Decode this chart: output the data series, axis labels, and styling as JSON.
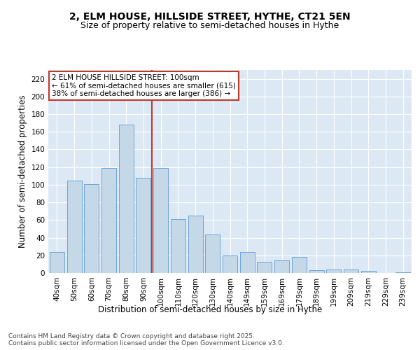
{
  "title_line1": "2, ELM HOUSE, HILLSIDE STREET, HYTHE, CT21 5EN",
  "title_line2": "Size of property relative to semi-detached houses in Hythe",
  "xlabel": "Distribution of semi-detached houses by size in Hythe",
  "ylabel": "Number of semi-detached properties",
  "categories": [
    "40sqm",
    "50sqm",
    "60sqm",
    "70sqm",
    "80sqm",
    "90sqm",
    "100sqm",
    "110sqm",
    "120sqm",
    "130sqm",
    "140sqm",
    "149sqm",
    "159sqm",
    "169sqm",
    "179sqm",
    "189sqm",
    "199sqm",
    "209sqm",
    "219sqm",
    "229sqm",
    "239sqm"
  ],
  "values": [
    24,
    105,
    101,
    119,
    168,
    108,
    119,
    61,
    65,
    44,
    20,
    24,
    13,
    14,
    18,
    3,
    4,
    4,
    2,
    0,
    1
  ],
  "bar_color": "#c5d8e8",
  "bar_edge_color": "#5b9bd5",
  "highlight_index": 6,
  "highlight_line_color": "#c0392b",
  "annotation_text": "2 ELM HOUSE HILLSIDE STREET: 100sqm\n← 61% of semi-detached houses are smaller (615)\n38% of semi-detached houses are larger (386) →",
  "annotation_box_color": "#ffffff",
  "annotation_box_edge_color": "#c0392b",
  "ylim": [
    0,
    230
  ],
  "yticks": [
    0,
    20,
    40,
    60,
    80,
    100,
    120,
    140,
    160,
    180,
    200,
    220
  ],
  "background_color": "#dce9f5",
  "footer_text": "Contains HM Land Registry data © Crown copyright and database right 2025.\nContains public sector information licensed under the Open Government Licence v3.0.",
  "title_fontsize": 10,
  "subtitle_fontsize": 9,
  "axis_label_fontsize": 8.5,
  "tick_fontsize": 7.5,
  "annotation_fontsize": 7.5,
  "footer_fontsize": 6.5
}
